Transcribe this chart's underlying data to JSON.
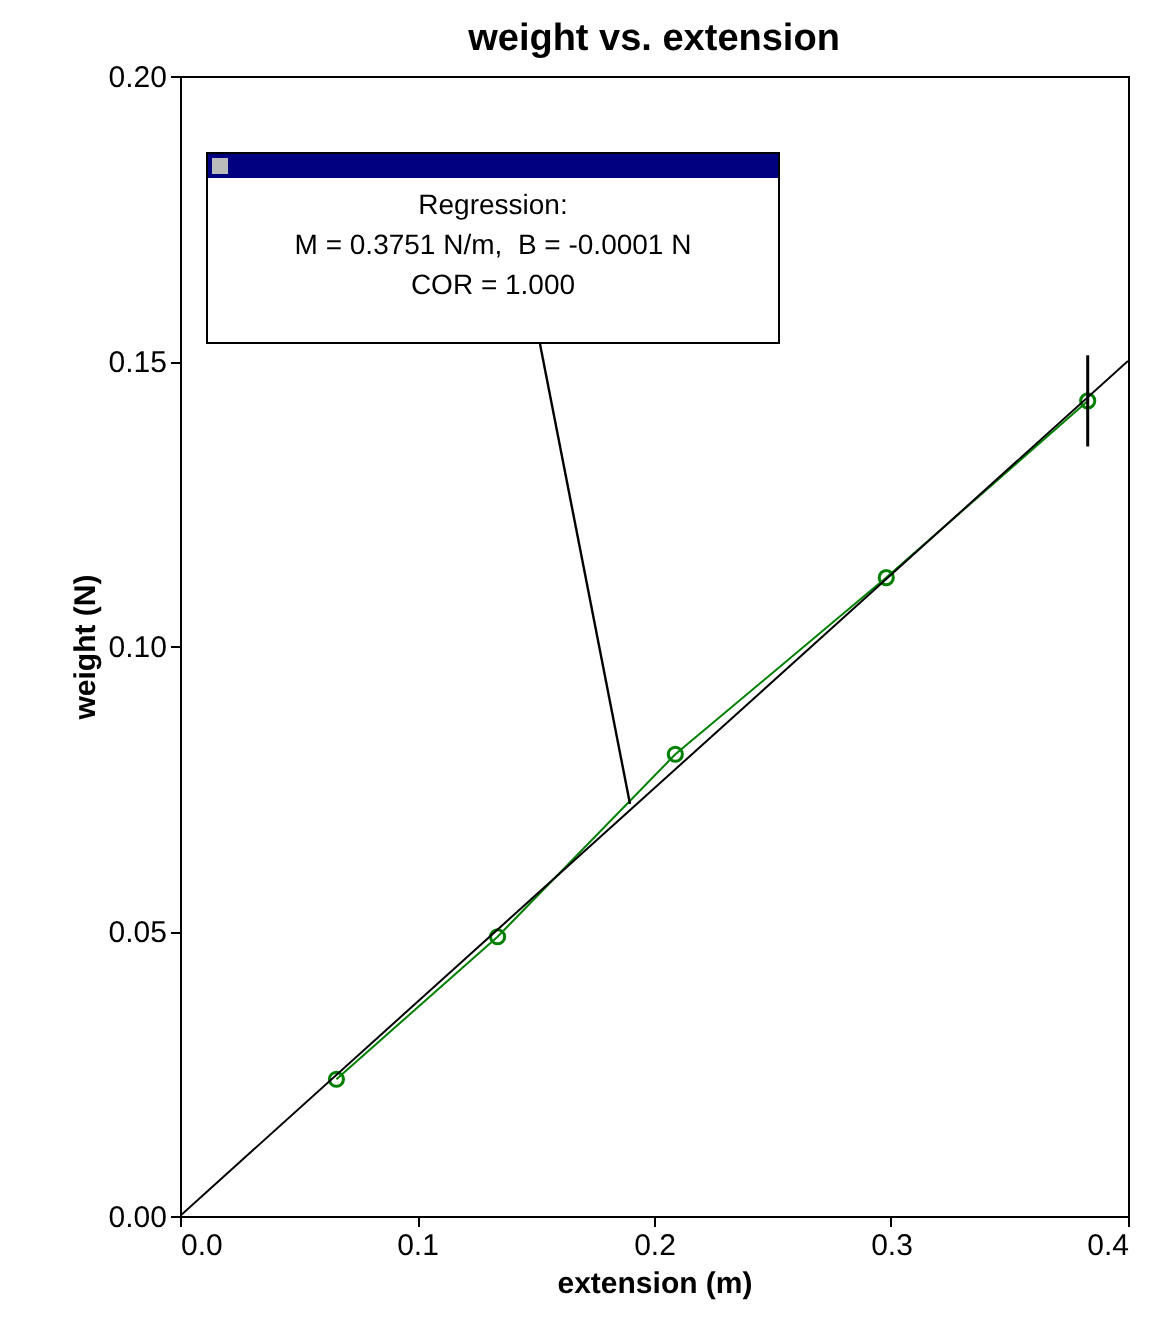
{
  "chart_data": {
    "type": "line",
    "title": "weight vs. extension",
    "xlabel": "extension (m)",
    "ylabel": "weight (N)",
    "xlim": [
      0,
      0.4
    ],
    "ylim": [
      0,
      0.2
    ],
    "xticks": [
      {
        "value": 0,
        "label": "0.0"
      },
      {
        "value": 0.1,
        "label": "0.1"
      },
      {
        "value": 0.2,
        "label": "0.2"
      },
      {
        "value": 0.3,
        "label": "0.3"
      },
      {
        "value": 0.4,
        "label": "0.4"
      }
    ],
    "yticks": [
      {
        "value": 0,
        "label": "0.00"
      },
      {
        "value": 0.05,
        "label": "0.05"
      },
      {
        "value": 0.1,
        "label": "0.10"
      },
      {
        "value": 0.15,
        "label": "0.15"
      },
      {
        "value": 0.2,
        "label": "0.20"
      }
    ],
    "series": [
      {
        "color": "#008000",
        "marker": "circle",
        "x": [
          0.066,
          0.134,
          0.209,
          0.298,
          0.383
        ],
        "values": [
          0.024,
          0.049,
          0.081,
          0.112,
          0.143
        ],
        "errors": [
          null,
          null,
          null,
          null,
          0.008
        ]
      },
      {
        "color": "#000000",
        "marker": "none",
        "x": [
          0,
          0.4
        ],
        "values": [
          0,
          0.15
        ]
      }
    ],
    "annotations": [
      "Regression:\nM = 0.3751 N/m,  B = -0.0001 N\nCOR = 1.000"
    ],
    "grid": false
  }
}
